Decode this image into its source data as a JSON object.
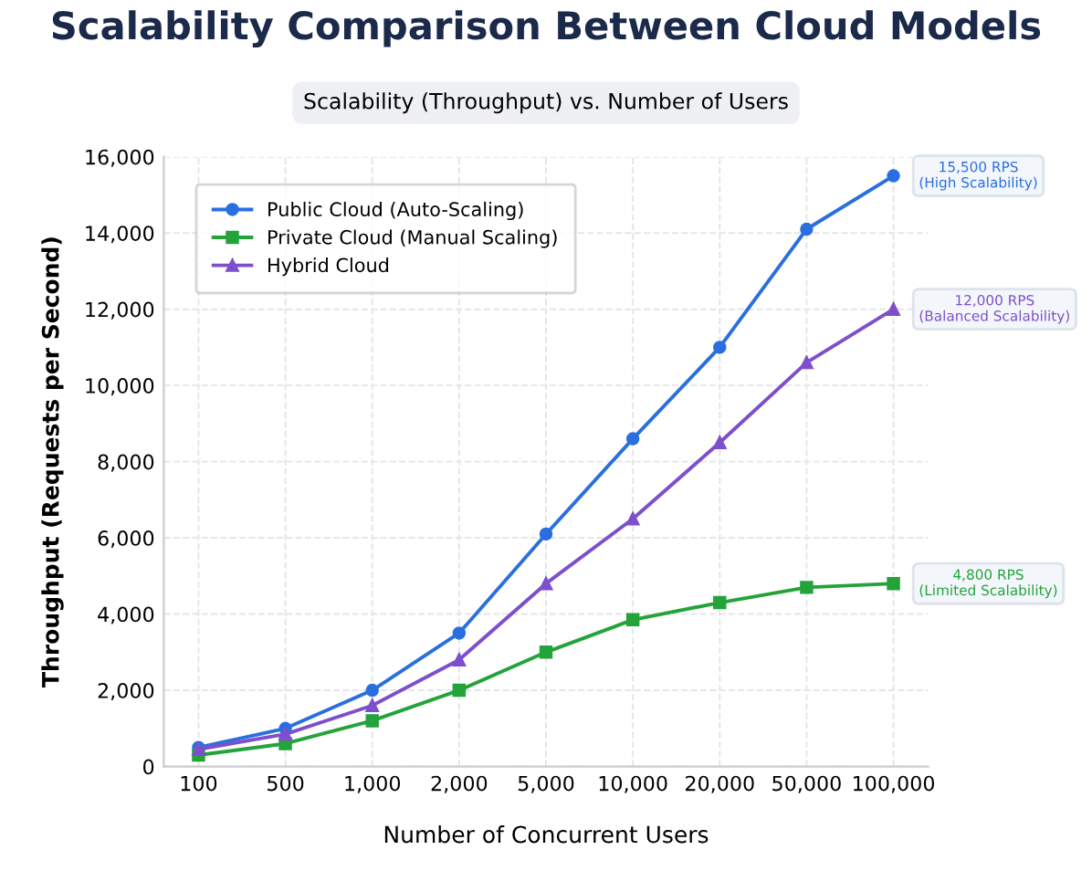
{
  "chart_data": {
    "type": "line",
    "title": "Scalability Comparison Between Cloud Models",
    "subtitle": "Scalability (Throughput) vs. Number of Users",
    "xlabel": "Number of Concurrent Users",
    "ylabel": "Throughput (Requests per Second)",
    "categories": [
      "100",
      "500",
      "1,000",
      "2,000",
      "5,000",
      "10,000",
      "20,000",
      "50,000",
      "100,000"
    ],
    "series": [
      {
        "name": "Public Cloud (Auto-Scaling)",
        "color": "#2a6fe0",
        "marker": "circle",
        "values": [
          500,
          1000,
          2000,
          3500,
          6100,
          8600,
          11000,
          14100,
          15500
        ]
      },
      {
        "name": "Private Cloud (Manual Scaling)",
        "color": "#23a33a",
        "marker": "square",
        "values": [
          300,
          600,
          1200,
          2000,
          3000,
          3850,
          4300,
          4700,
          4800
        ]
      },
      {
        "name": "Hybrid Cloud",
        "color": "#7e4fcc",
        "marker": "triangle",
        "values": [
          450,
          850,
          1600,
          2800,
          4800,
          6500,
          8500,
          10600,
          12000
        ]
      }
    ],
    "annotations": [
      {
        "text": "15,500 RPS\n(High Scalability)",
        "x": "100,000",
        "y": 15500
      },
      {
        "text": "12,000 RPS\n(Balanced Scalability)",
        "x": "100,000",
        "y": 12000
      },
      {
        "text": "4,800 RPS\n(Limited Scalability)",
        "x": "100,000",
        "y": 4800
      }
    ],
    "ylim": [
      0,
      16000
    ],
    "yticks": [
      {
        "value": 0,
        "label": "0"
      },
      {
        "value": 2000,
        "label": "2,000"
      },
      {
        "value": 4000,
        "label": "4,000"
      },
      {
        "value": 6000,
        "label": "6,000"
      },
      {
        "value": 8000,
        "label": "8,000"
      },
      {
        "value": 10000,
        "label": "10,000"
      },
      {
        "value": 12000,
        "label": "12,000"
      },
      {
        "value": 14000,
        "label": "14,000"
      },
      {
        "value": 16000,
        "label": "16,000"
      }
    ],
    "grid": true,
    "legend": "top left",
    "line_style": "solid"
  }
}
